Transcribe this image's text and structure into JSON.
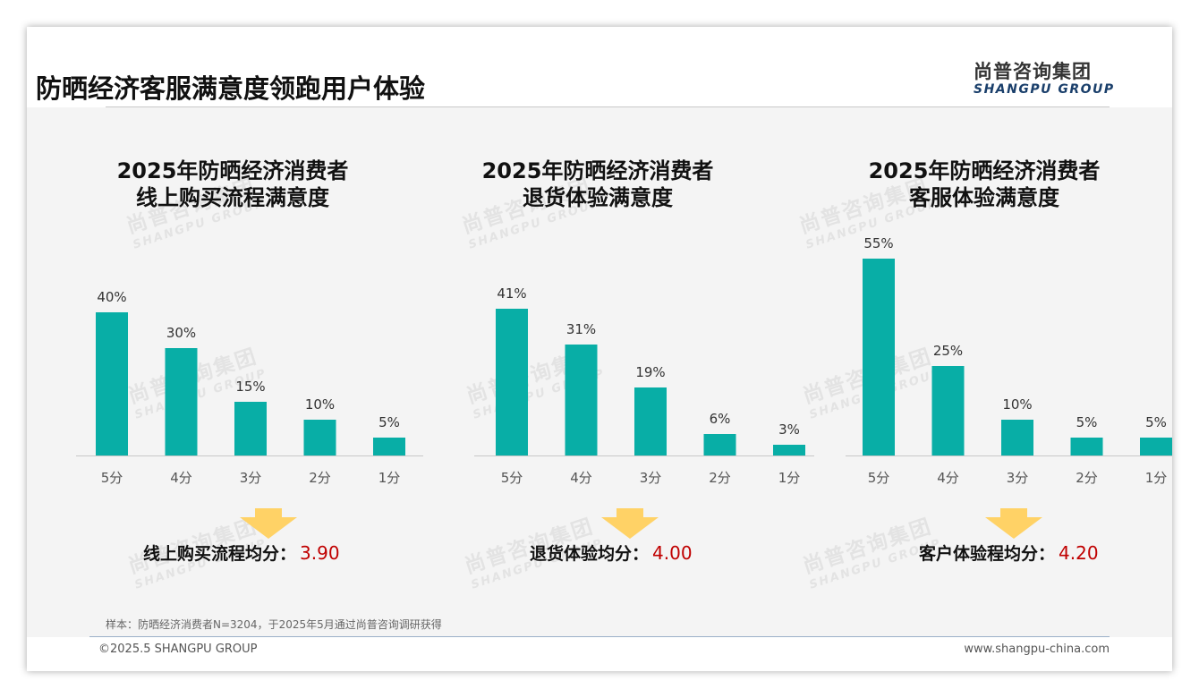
{
  "page": {
    "title": "防晒经济客服满意度领跑用户体验",
    "logo_cn": "尚普咨询集团",
    "logo_en": "SHANGPU GROUP",
    "watermark_cn": "尚普咨询集团",
    "watermark_en": "SHANGPU GROUP",
    "note": "样本：防晒经济消费者N=3204，于2025年5月通过尚普咨询调研获得",
    "copyright": "©2025.5 SHANGPU GROUP",
    "website": "www.shangpu-china.com",
    "bar_color": "#08aea6",
    "arrow_color": "#ffd266",
    "avg_value_color": "#c00000"
  },
  "chart_data": [
    {
      "type": "bar",
      "title_line1": "2025年防晒经济消费者",
      "title_line2": "线上购买流程满意度",
      "categories": [
        "5分",
        "4分",
        "3分",
        "2分",
        "1分"
      ],
      "values": [
        40,
        30,
        15,
        10,
        5
      ],
      "value_labels": [
        "40%",
        "30%",
        "15%",
        "10%",
        "5%"
      ],
      "unit": "%",
      "avg_label": "线上购买流程均分：",
      "avg_value": "3.90"
    },
    {
      "type": "bar",
      "title_line1": "2025年防晒经济消费者",
      "title_line2": "退货体验满意度",
      "categories": [
        "5分",
        "4分",
        "3分",
        "2分",
        "1分"
      ],
      "values": [
        41,
        31,
        19,
        6,
        3
      ],
      "value_labels": [
        "41%",
        "31%",
        "19%",
        "6%",
        "3%"
      ],
      "unit": "%",
      "avg_label": "退货体验均分：",
      "avg_value": "4.00"
    },
    {
      "type": "bar",
      "title_line1": "2025年防晒经济消费者",
      "title_line2": "客服体验满意度",
      "categories": [
        "5分",
        "4分",
        "3分",
        "2分",
        "1分"
      ],
      "values": [
        55,
        25,
        10,
        5,
        5
      ],
      "value_labels": [
        "55%",
        "25%",
        "10%",
        "5%",
        "5%"
      ],
      "unit": "%",
      "avg_label": "客户体验程均分：",
      "avg_value": "4.20"
    }
  ]
}
